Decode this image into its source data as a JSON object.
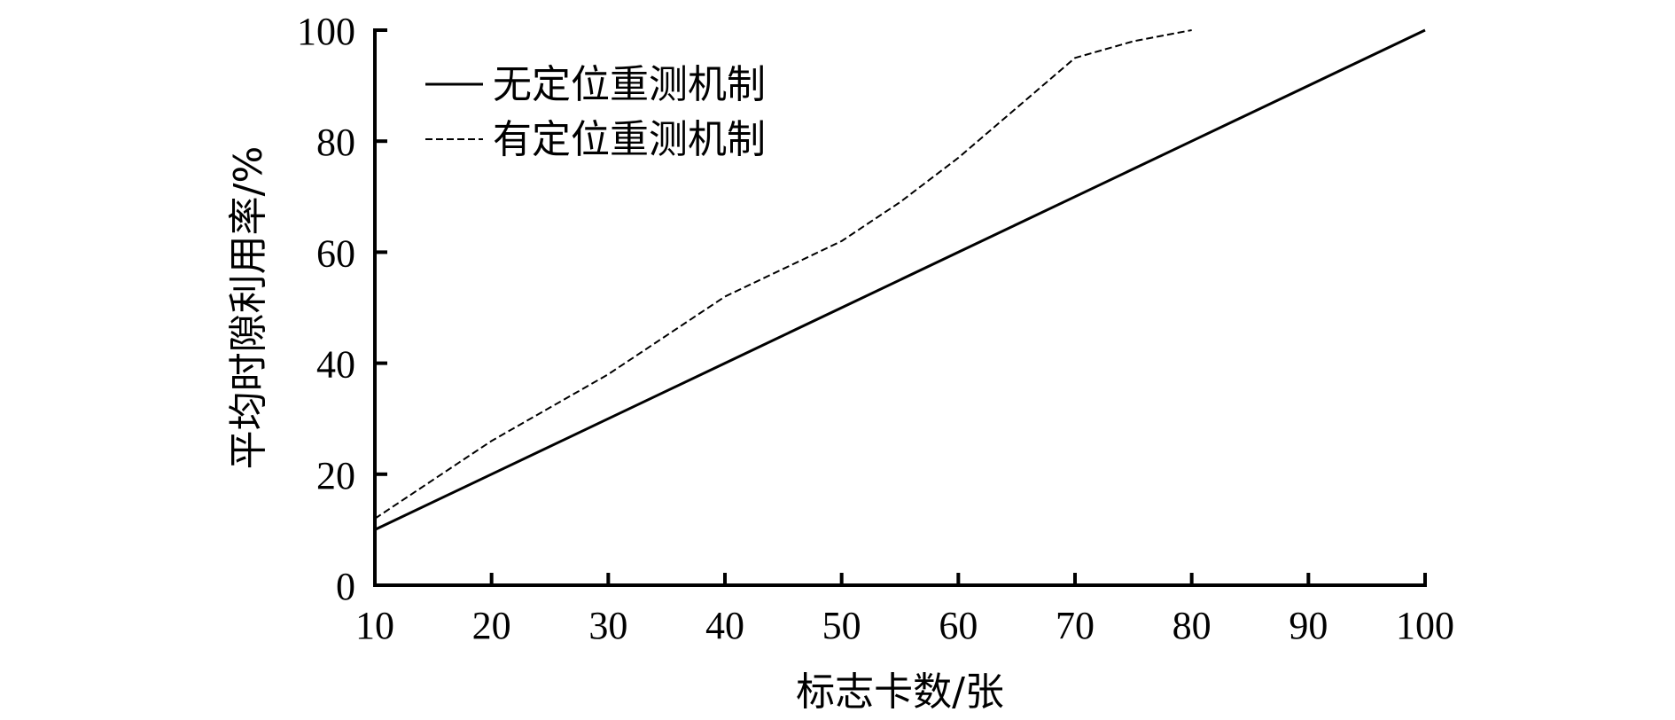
{
  "chart_data": {
    "type": "line",
    "xlabel": "标志卡数/张",
    "ylabel": "平均时隙利用率/%",
    "xlim": [
      10,
      100
    ],
    "ylim": [
      0,
      100
    ],
    "x_ticks": [
      "10",
      "20",
      "30",
      "40",
      "50",
      "60",
      "70",
      "80",
      "90",
      "100"
    ],
    "y_ticks": [
      "0",
      "20",
      "40",
      "60",
      "80",
      "100"
    ],
    "grid": false,
    "legend_position": "top-left",
    "series": [
      {
        "name": "无定位重测机制",
        "style": "solid",
        "x": [
          10,
          20,
          30,
          40,
          50,
          60,
          70,
          80,
          90,
          100
        ],
        "y": [
          10,
          20,
          30,
          40,
          50,
          60,
          70,
          80,
          90,
          100
        ]
      },
      {
        "name": "有定位重测机制",
        "style": "dashed",
        "x": [
          10,
          15,
          20,
          25,
          30,
          35,
          40,
          45,
          50,
          55,
          60,
          65,
          70,
          75,
          80
        ],
        "y": [
          12,
          19,
          26,
          32,
          38,
          45,
          52,
          57,
          62,
          69,
          77,
          86,
          95,
          98,
          100
        ]
      }
    ]
  }
}
